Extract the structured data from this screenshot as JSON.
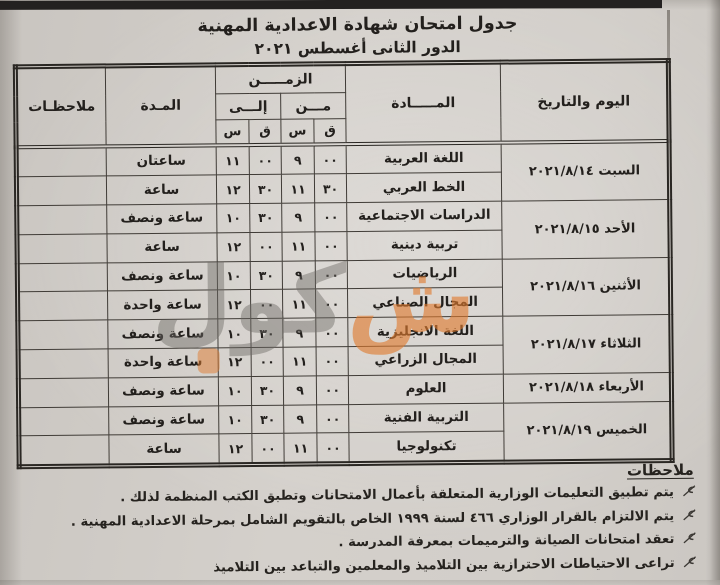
{
  "page": {
    "title": "جدول امتحان شهادة الاعدادية المهنية",
    "subtitle": "الدور الثانى أغسطس ٢٠٢١"
  },
  "table": {
    "headers": {
      "day": "اليوم والتاريخ",
      "subject": "المـــــادة",
      "time": "الزمـــــن",
      "from": "مـــن",
      "to": "إلـــى",
      "hour": "س",
      "minute": "ق",
      "duration": "المـدة",
      "notes": "ملاحظـات"
    },
    "day_groups": [
      {
        "label": "السبت ٢٠٢١/٨/١٤",
        "span": 2
      },
      {
        "label": "الأحد ٢٠٢١/٨/١٥",
        "span": 2
      },
      {
        "label": "الأثنين ٢٠٢١/٨/١٦",
        "span": 2
      },
      {
        "label": "الثلاثاء ٢٠٢١/٨/١٧",
        "span": 2
      },
      {
        "label": "الأربعاء ٢٠٢١/٨/١٨",
        "span": 1
      },
      {
        "label": "الخميس ٢٠٢١/٨/١٩",
        "span": 2
      }
    ],
    "rows": [
      {
        "subject": "اللغة العربية",
        "from_h": "٩",
        "from_m": "٠٠",
        "to_h": "١١",
        "to_m": "٠٠",
        "duration": "ساعتان",
        "notes": ""
      },
      {
        "subject": "الخط العربي",
        "from_h": "١١",
        "from_m": "٣٠",
        "to_h": "١٢",
        "to_m": "٣٠",
        "duration": "ساعة",
        "notes": ""
      },
      {
        "subject": "الدراسات الاجتماعية",
        "from_h": "٩",
        "from_m": "٠٠",
        "to_h": "١٠",
        "to_m": "٣٠",
        "duration": "ساعة ونصف",
        "notes": ""
      },
      {
        "subject": "تربية دينية",
        "from_h": "١١",
        "from_m": "٠٠",
        "to_h": "١٢",
        "to_m": "٠٠",
        "duration": "ساعة",
        "notes": ""
      },
      {
        "subject": "الرياضيات",
        "from_h": "٩",
        "from_m": "٠٠",
        "to_h": "١٠",
        "to_m": "٣٠",
        "duration": "ساعة ونصف",
        "notes": ""
      },
      {
        "subject": "المجال الصناعي",
        "from_h": "١١",
        "from_m": "٠٠",
        "to_h": "١٢",
        "to_m": "٠٠",
        "duration": "ساعة واحدة",
        "notes": ""
      },
      {
        "subject": "اللغة الانجليزية",
        "from_h": "٩",
        "from_m": "٠٠",
        "to_h": "١٠",
        "to_m": "٣٠",
        "duration": "ساعة ونصف",
        "notes": ""
      },
      {
        "subject": "المجال الزراعي",
        "from_h": "١١",
        "from_m": "٠٠",
        "to_h": "١٢",
        "to_m": "٠٠",
        "duration": "ساعة واحدة",
        "notes": ""
      },
      {
        "subject": "العلوم",
        "from_h": "٩",
        "from_m": "٠٠",
        "to_h": "١٠",
        "to_m": "٣٠",
        "duration": "ساعة ونصف",
        "notes": ""
      },
      {
        "subject": "التربية الفنية",
        "from_h": "٩",
        "from_m": "٠٠",
        "to_h": "١٠",
        "to_m": "٣٠",
        "duration": "ساعة ونصف",
        "notes": ""
      },
      {
        "subject": "تكنولوجيا",
        "from_h": "١١",
        "from_m": "٠٠",
        "to_h": "١٢",
        "to_m": "٠٠",
        "duration": "ساعة",
        "notes": ""
      }
    ]
  },
  "notes_section": {
    "title": "ملاحظات",
    "items": [
      "يتم تطبيق التعليمات الوزارية المتعلقة بأعمال الامتحانات وتطبق الكتب المنظمة لذلك .",
      "يتم الالتزام بالقرار الوزاري ٤٦٦ لسنة ١٩٩٩ الخاص بالتقويم الشامل بمرحلة الاعدادية المهنية .",
      "تعقد امتحانات الصيانة والترميمات بمعرفة المدرسة .",
      "تراعى الاحتياطات الاحترازية بين التلاميذ والمعلمين والتباعد بين التلاميذ"
    ]
  },
  "watermark": {
    "first_letter": "ش",
    "rest": "كول",
    "accent_color": "#e07b2f",
    "gray_color": "#6e6b66"
  }
}
